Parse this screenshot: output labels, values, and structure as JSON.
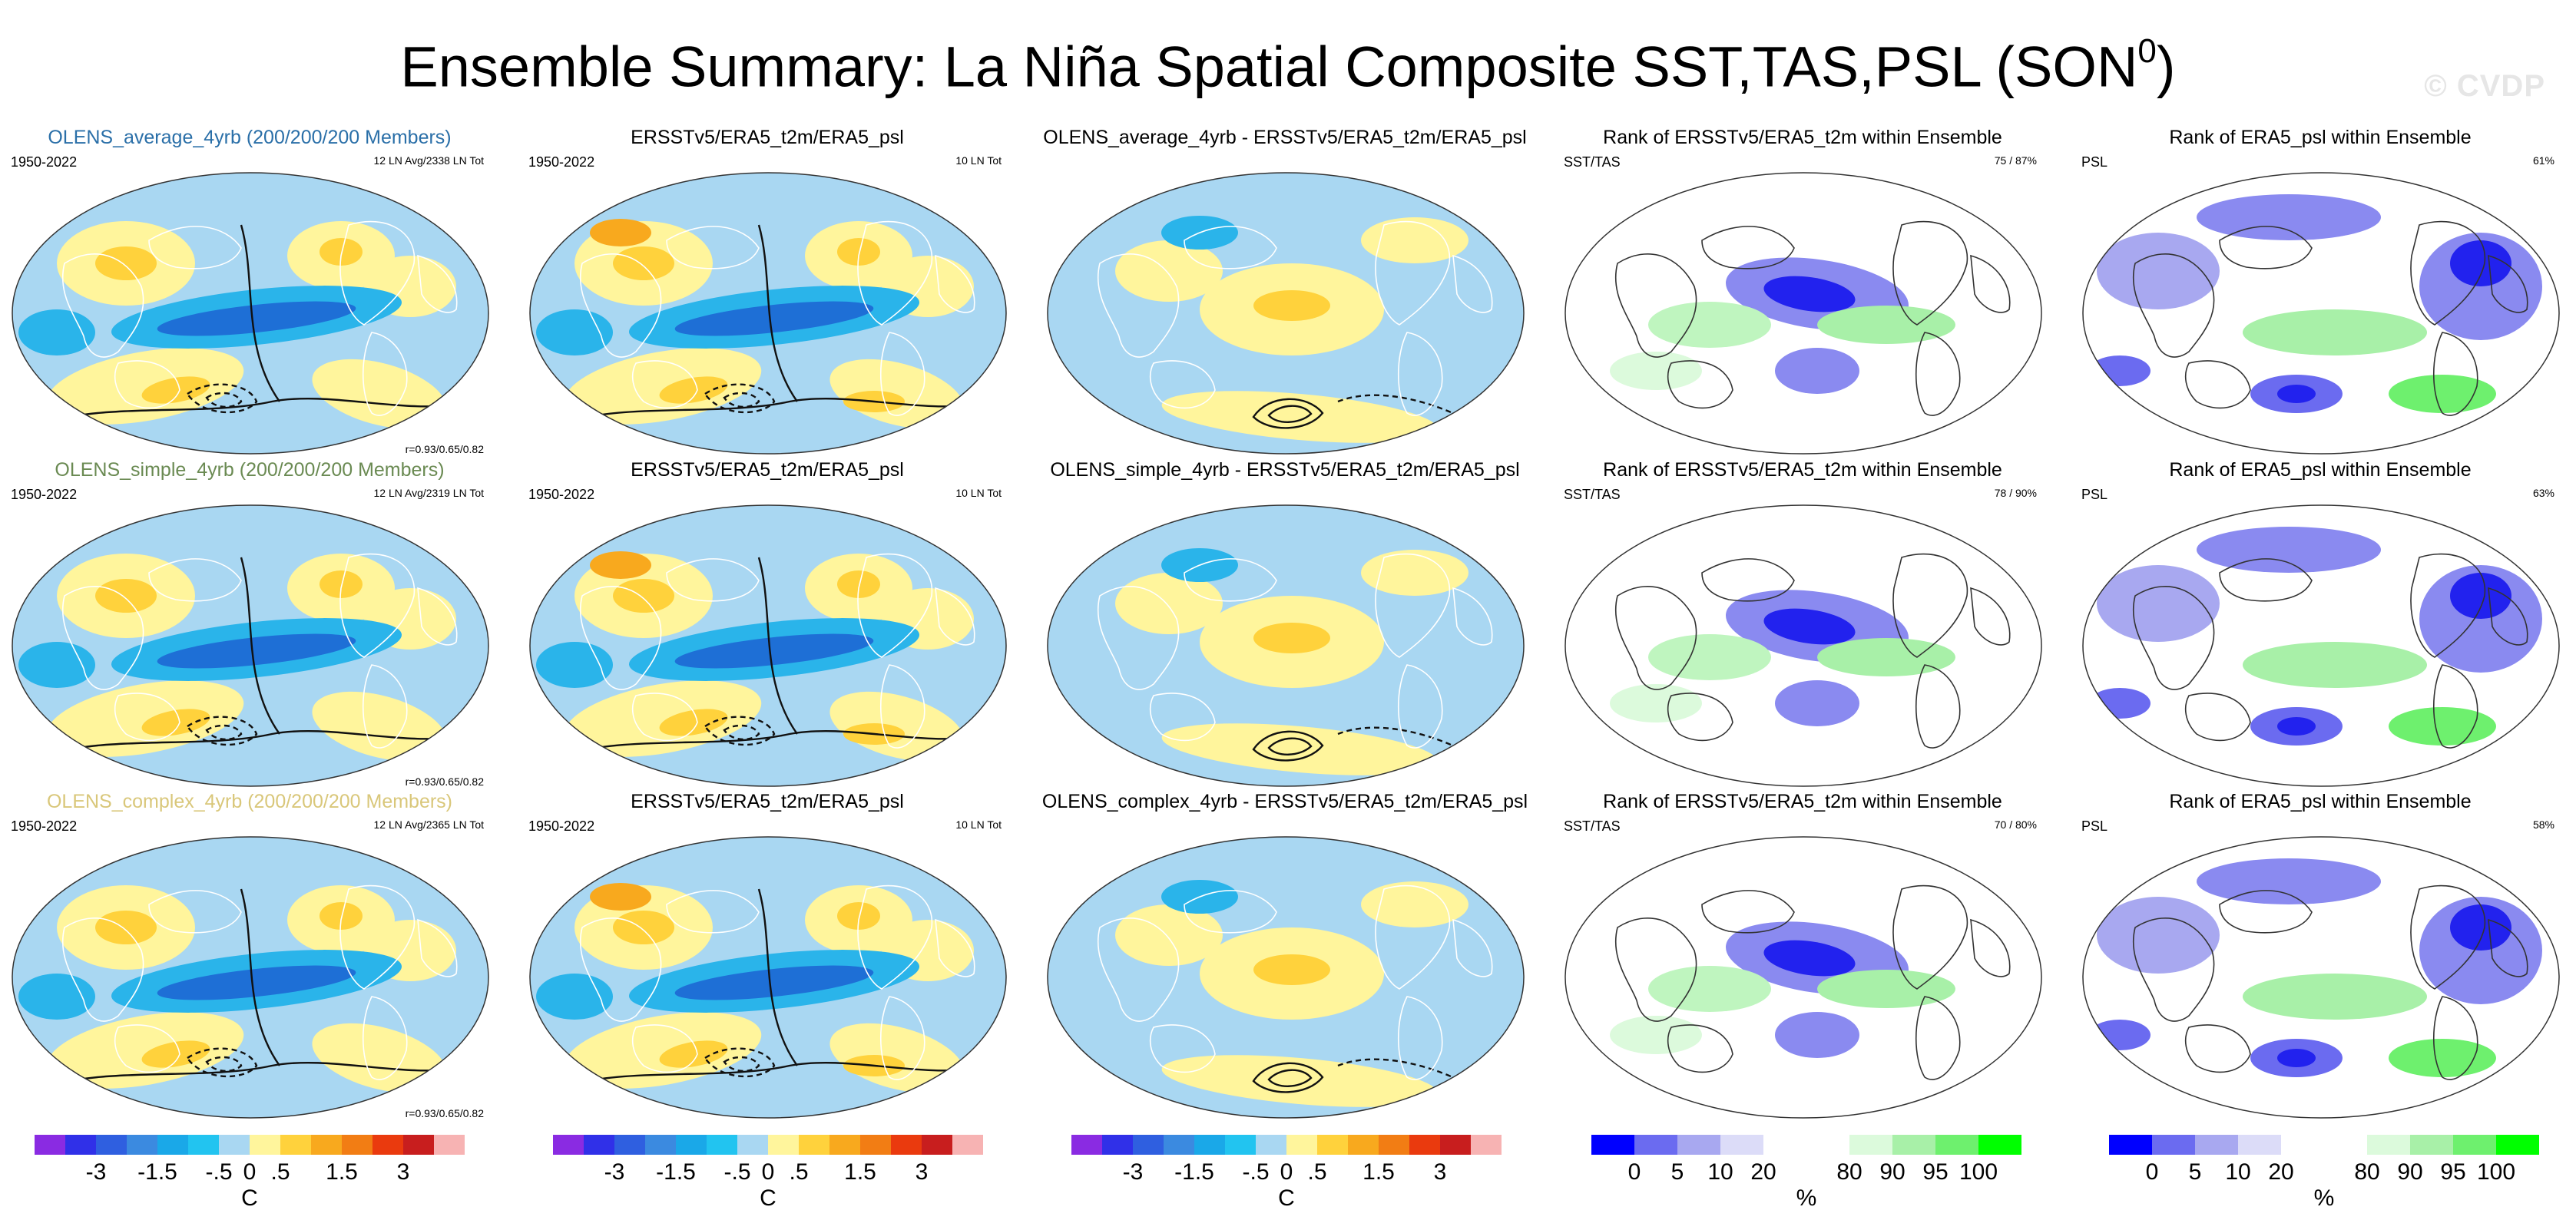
{
  "title": "Ensemble Summary: La Niña Spatial Composite SST,TAS,PSL (SON",
  "title_sup": "0",
  "title_close": ")",
  "watermark": "© CVDP",
  "colors": {
    "ens_average": "#2a6fa8",
    "ens_simple": "#6a8a52",
    "ens_complex": "#d9c77a",
    "neg_strong": "#1e6fd6",
    "neg_mid": "#2ab4ea",
    "neg_weak": "#a9d7f2",
    "pos_weak": "#fff59c",
    "pos_mid": "#ffd23c",
    "pos_strong": "#f8a91e",
    "rank_low": "#2222ee",
    "rank_high": "#66ee66"
  },
  "chart_data": [
    {
      "type": "heatmap",
      "row": 1,
      "col": 1,
      "title": "OLENS_average_4yrb (200/200/200 Members)",
      "period": "1950-2022",
      "note": "12 LN Avg/2338 LN Tot",
      "stat": "r=0.93/0.65/0.82",
      "title_color": "ens_average",
      "kind": "ens"
    },
    {
      "type": "heatmap",
      "row": 1,
      "col": 2,
      "title": "ERSSTv5/ERA5_t2m/ERA5_psl",
      "period": "1950-2022",
      "note": "10 LN Tot",
      "stat": "",
      "kind": "obs"
    },
    {
      "type": "heatmap",
      "row": 1,
      "col": 3,
      "title": "OLENS_average_4yrb - ERSSTv5/ERA5_t2m/ERA5_psl",
      "period": "",
      "note": "",
      "stat": "",
      "kind": "diff"
    },
    {
      "type": "heatmap",
      "row": 1,
      "col": 4,
      "title": "Rank of ERSSTv5/ERA5_t2m within Ensemble",
      "period": "SST/TAS",
      "note": "75 /  87%",
      "stat": "",
      "kind": "rank"
    },
    {
      "type": "heatmap",
      "row": 1,
      "col": 5,
      "title": "Rank of ERA5_psl within Ensemble",
      "period": "PSL",
      "note": "61%",
      "stat": "",
      "kind": "rankpsl"
    },
    {
      "type": "heatmap",
      "row": 2,
      "col": 1,
      "title": "OLENS_simple_4yrb (200/200/200 Members)",
      "period": "1950-2022",
      "note": "12 LN Avg/2319 LN Tot",
      "stat": "r=0.93/0.65/0.82",
      "title_color": "ens_simple",
      "kind": "ens"
    },
    {
      "type": "heatmap",
      "row": 2,
      "col": 2,
      "title": "ERSSTv5/ERA5_t2m/ERA5_psl",
      "period": "1950-2022",
      "note": "10 LN Tot",
      "stat": "",
      "kind": "obs"
    },
    {
      "type": "heatmap",
      "row": 2,
      "col": 3,
      "title": "OLENS_simple_4yrb - ERSSTv5/ERA5_t2m/ERA5_psl",
      "period": "",
      "note": "",
      "stat": "",
      "kind": "diff"
    },
    {
      "type": "heatmap",
      "row": 2,
      "col": 4,
      "title": "Rank of ERSSTv5/ERA5_t2m within Ensemble",
      "period": "SST/TAS",
      "note": "78 /  90%",
      "stat": "",
      "kind": "rank"
    },
    {
      "type": "heatmap",
      "row": 2,
      "col": 5,
      "title": "Rank of ERA5_psl within Ensemble",
      "period": "PSL",
      "note": "63%",
      "stat": "",
      "kind": "rankpsl"
    },
    {
      "type": "heatmap",
      "row": 3,
      "col": 1,
      "title": "OLENS_complex_4yrb (200/200/200 Members)",
      "period": "1950-2022",
      "note": "12 LN Avg/2365 LN Tot",
      "stat": "r=0.93/0.65/0.82",
      "title_color": "ens_complex",
      "kind": "ens"
    },
    {
      "type": "heatmap",
      "row": 3,
      "col": 2,
      "title": "ERSSTv5/ERA5_t2m/ERA5_psl",
      "period": "1950-2022",
      "note": "10 LN Tot",
      "stat": "",
      "kind": "obs"
    },
    {
      "type": "heatmap",
      "row": 3,
      "col": 3,
      "title": "OLENS_complex_4yrb - ERSSTv5/ERA5_t2m/ERA5_psl",
      "period": "",
      "note": "",
      "stat": "",
      "kind": "diff"
    },
    {
      "type": "heatmap",
      "row": 3,
      "col": 4,
      "title": "Rank of ERSSTv5/ERA5_t2m within Ensemble",
      "period": "SST/TAS",
      "note": "70 /  80%",
      "stat": "",
      "kind": "rank"
    },
    {
      "type": "heatmap",
      "row": 3,
      "col": 5,
      "title": "Rank of ERA5_psl within Ensemble",
      "period": "PSL",
      "note": "58%",
      "stat": "",
      "kind": "rankpsl"
    }
  ],
  "colorbars": [
    {
      "kind": "temp",
      "unit": "C",
      "colors": [
        "#8a2be2",
        "#3030e8",
        "#2f5fe0",
        "#3b8ae0",
        "#1aa8e8",
        "#22c4f0",
        "#a9d7f2",
        "#fff59c",
        "#ffd23c",
        "#f8a91e",
        "#f27d14",
        "#ea3a0e",
        "#c81e1e",
        "#f7b3b3"
      ],
      "labels": [
        "-3",
        "-1.5",
        "-.5",
        "0",
        ".5",
        "1.5",
        "3"
      ],
      "label_boundaries": [
        2,
        4,
        6,
        7,
        8,
        10,
        12
      ]
    },
    {
      "kind": "rank",
      "unit": "%",
      "colors": [
        "#0000ff",
        "#6b6bf0",
        "#a8a8f0",
        "#dcdcf8",
        "#ffffff",
        "#ffffff",
        "#dcfadc",
        "#a8f0a8",
        "#6ef06e",
        "#00ff00"
      ],
      "labels": [
        "0",
        "5",
        "10",
        "20",
        "80",
        "90",
        "95",
        "100"
      ],
      "label_boundaries": [
        1,
        2,
        3,
        4,
        6,
        7,
        8,
        9
      ]
    }
  ]
}
